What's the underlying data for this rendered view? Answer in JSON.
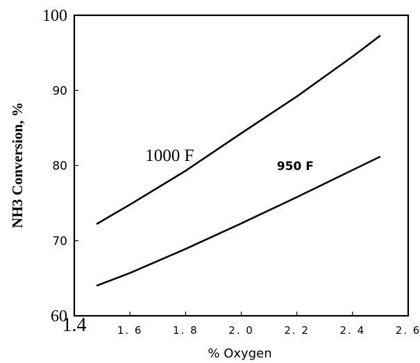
{
  "chart_data": {
    "type": "line",
    "xlabel": "% Oxygen",
    "ylabel": "NH3 Conversion, %",
    "xlim": [
      1.4,
      2.6
    ],
    "ylim": [
      60,
      100
    ],
    "x_ticks": [
      {
        "value": 1.4,
        "label": "1.4"
      },
      {
        "value": 1.6,
        "label": "1. 6"
      },
      {
        "value": 1.8,
        "label": "1. 8"
      },
      {
        "value": 2.0,
        "label": "2. 0"
      },
      {
        "value": 2.2,
        "label": "2. 2"
      },
      {
        "value": 2.4,
        "label": "2. 4"
      },
      {
        "value": 2.6,
        "label": "2. 6"
      }
    ],
    "y_ticks": [
      {
        "value": 60,
        "label": "60"
      },
      {
        "value": 70,
        "label": "70"
      },
      {
        "value": 80,
        "label": "80"
      },
      {
        "value": 90,
        "label": "90"
      },
      {
        "value": 100,
        "label": "100"
      }
    ],
    "grid": false,
    "series": [
      {
        "name": "1000 F",
        "x": [
          1.48,
          1.6,
          1.8,
          2.0,
          2.2,
          2.4,
          2.5
        ],
        "y": [
          72.2,
          74.8,
          79.3,
          84.3,
          89.2,
          94.5,
          97.3
        ]
      },
      {
        "name": "950 F",
        "x": [
          1.48,
          1.6,
          1.8,
          2.0,
          2.2,
          2.4,
          2.5
        ],
        "y": [
          64.0,
          65.7,
          68.9,
          72.3,
          75.8,
          79.4,
          81.2
        ]
      }
    ],
    "annotations": [
      {
        "text": "1000 F",
        "x": 1.655,
        "y": 80.6
      },
      {
        "text": "950 F",
        "x": 2.128,
        "y": 79.4
      }
    ],
    "colors": {
      "line": "#000000",
      "background": "#ffffff"
    }
  }
}
